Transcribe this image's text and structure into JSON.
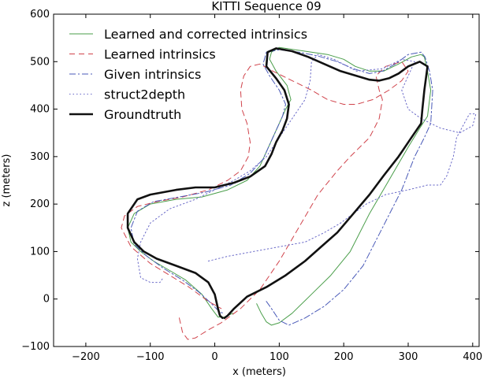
{
  "chart_data": {
    "type": "line",
    "title": "KITTI Sequence 09",
    "xlabel": "x (meters)",
    "ylabel": "z (meters)",
    "xlim": [
      -250,
      410
    ],
    "ylim": [
      -100,
      600
    ],
    "xticks": [
      -200,
      -100,
      0,
      100,
      200,
      300,
      400
    ],
    "yticks": [
      -100,
      0,
      100,
      200,
      300,
      400,
      500,
      600
    ],
    "tick_labels_x": [
      "−200",
      "−100",
      "0",
      "100",
      "200",
      "300",
      "400"
    ],
    "tick_labels_y": [
      "−100",
      "0",
      "100",
      "200",
      "300",
      "400",
      "500",
      "600"
    ],
    "grid": false,
    "legend_position": "top-left",
    "series": [
      {
        "name": "Learned and corrected intrinsics",
        "color": "#4a9e4a",
        "style": "solid",
        "x": [
          65,
          72,
          80,
          88,
          100,
          120,
          150,
          180,
          210,
          240,
          270,
          300,
          318,
          330,
          335,
          330,
          325,
          320,
          305,
          285,
          262,
          240,
          218,
          200,
          175,
          150,
          125,
          100,
          88,
          85,
          95,
          112,
          118,
          110,
          100,
          90,
          80,
          70,
          50,
          20,
          -20,
          -60,
          -100,
          -125,
          -135,
          -130,
          -115,
          -95,
          -70,
          -45,
          -20,
          -5,
          5,
          15,
          28
        ],
        "y": [
          -10,
          -30,
          -48,
          -55,
          -50,
          -30,
          10,
          50,
          100,
          180,
          250,
          320,
          360,
          385,
          440,
          480,
          510,
          515,
          510,
          495,
          480,
          480,
          490,
          505,
          515,
          520,
          525,
          530,
          520,
          505,
          480,
          450,
          420,
          400,
          370,
          340,
          310,
          280,
          250,
          230,
          215,
          210,
          200,
          180,
          150,
          120,
          100,
          80,
          60,
          40,
          10,
          -20,
          -38,
          -38,
          -30
        ]
      },
      {
        "name": "Learned intrinsics",
        "color": "#d0434b",
        "style": "dashed",
        "x": [
          -55,
          -50,
          -42,
          -30,
          -10,
          10,
          40,
          70,
          100,
          130,
          160,
          190,
          210,
          240,
          255,
          260,
          255,
          250,
          265,
          290,
          300,
          290,
          270,
          245,
          220,
          200,
          175,
          150,
          120,
          90,
          70,
          55,
          45,
          40,
          42,
          50,
          55,
          52,
          40,
          20,
          -10,
          -50,
          -90,
          -120,
          -140,
          -145,
          -130,
          -100,
          -70,
          -40,
          -10,
          10
        ],
        "y": [
          -40,
          -70,
          -85,
          -82,
          -65,
          -50,
          -20,
          20,
          80,
          150,
          220,
          270,
          300,
          340,
          380,
          420,
          440,
          470,
          490,
          500,
          480,
          460,
          440,
          420,
          410,
          410,
          420,
          440,
          460,
          480,
          495,
          490,
          470,
          440,
          400,
          370,
          330,
          300,
          270,
          250,
          230,
          215,
          205,
          195,
          175,
          150,
          110,
          75,
          50,
          25,
          -5,
          -20
        ]
      },
      {
        "name": "Given intrinsics",
        "color": "#4a5ab8",
        "style": "dashdot",
        "x": [
          80,
          88,
          100,
          115,
          140,
          170,
          200,
          230,
          260,
          290,
          310,
          325,
          335,
          338,
          333,
          326,
          320,
          300,
          280,
          260,
          240,
          215,
          190,
          160,
          130,
          100,
          80,
          75,
          85,
          100,
          110,
          105,
          95,
          85,
          75,
          55,
          25,
          -15,
          -55,
          -95,
          -120,
          -130,
          -125,
          -105,
          -80,
          -50,
          -25,
          -5,
          8,
          15
        ],
        "y": [
          -5,
          -20,
          -45,
          -55,
          -40,
          -15,
          20,
          70,
          150,
          230,
          300,
          340,
          370,
          440,
          480,
          510,
          520,
          515,
          495,
          480,
          475,
          485,
          500,
          512,
          520,
          525,
          520,
          495,
          470,
          440,
          410,
          385,
          355,
          325,
          295,
          265,
          240,
          225,
          215,
          205,
          185,
          150,
          115,
          90,
          65,
          40,
          15,
          -10,
          -28,
          -30
        ]
      },
      {
        "name": "struct2depth",
        "color": "#6a6ac8",
        "style": "dotted",
        "x": [
          -10,
          20,
          60,
          100,
          140,
          170,
          195,
          215,
          235,
          265,
          300,
          330,
          350,
          360,
          370,
          375,
          395,
          405,
          400,
          380,
          350,
          320,
          300,
          290,
          300,
          310,
          290,
          260,
          220,
          185,
          160,
          150,
          148,
          140,
          120,
          100,
          80,
          55,
          30,
          0,
          -30,
          -70,
          -100,
          -115,
          -120,
          -115,
          -100,
          -85,
          -80
        ],
        "y": [
          80,
          90,
          100,
          110,
          120,
          140,
          160,
          180,
          200,
          220,
          230,
          240,
          240,
          260,
          300,
          340,
          390,
          390,
          365,
          350,
          360,
          380,
          400,
          440,
          470,
          500,
          505,
          485,
          480,
          505,
          515,
          500,
          460,
          420,
          380,
          340,
          300,
          270,
          250,
          230,
          210,
          190,
          160,
          120,
          85,
          45,
          35,
          35,
          45
        ]
      },
      {
        "name": "Groundtruth",
        "color": "#111111",
        "style": "solid-bold",
        "x": [
          15,
          20,
          30,
          50,
          80,
          110,
          140,
          165,
          190,
          215,
          240,
          262,
          285,
          305,
          320,
          322,
          325,
          328,
          330,
          318,
          300,
          285,
          270,
          255,
          240,
          220,
          195,
          170,
          145,
          120,
          95,
          82,
          80,
          95,
          108,
          115,
          112,
          105,
          95,
          88,
          78,
          55,
          30,
          0,
          -30,
          -60,
          -80,
          -100,
          -120,
          -135,
          -135,
          -125,
          -110,
          -90,
          -60,
          -30,
          -10,
          0,
          5,
          8,
          12
        ],
        "y": [
          -40,
          -35,
          -20,
          5,
          25,
          50,
          80,
          110,
          140,
          180,
          220,
          260,
          300,
          340,
          370,
          400,
          440,
          470,
          490,
          500,
          490,
          475,
          465,
          460,
          462,
          470,
          480,
          495,
          510,
          522,
          528,
          520,
          490,
          465,
          440,
          410,
          380,
          355,
          330,
          305,
          280,
          258,
          245,
          235,
          235,
          230,
          225,
          220,
          210,
          180,
          150,
          120,
          100,
          85,
          70,
          55,
          35,
          10,
          -20,
          -35,
          -40
        ]
      }
    ]
  }
}
